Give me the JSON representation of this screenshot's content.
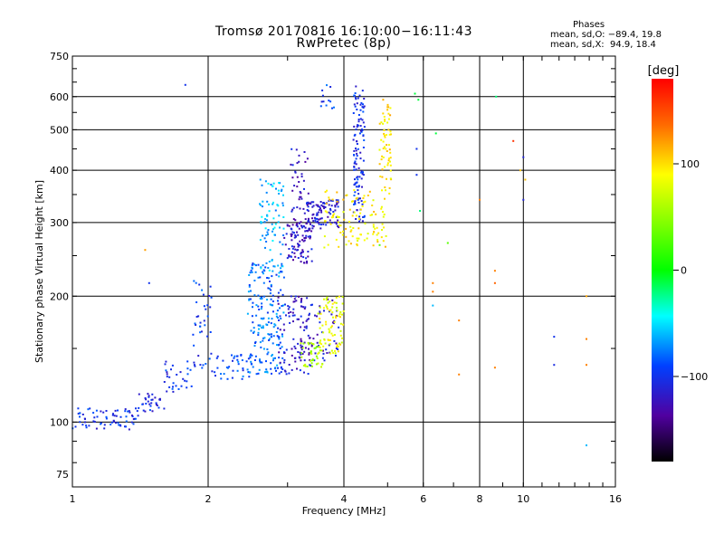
{
  "chart_data": {
    "type": "scatter",
    "title": "Tromsø 20170816 16:10:00−16:11:43",
    "subtitle": "RwPretec (8p)",
    "xlabel": "Frequency [MHz]",
    "ylabel": "Stationary phase Virtual Height [km]",
    "x_scale": "log",
    "y_scale": "log",
    "xlim": [
      1,
      16
    ],
    "ylim": [
      70,
      750
    ],
    "x_ticks": [
      1,
      2,
      4,
      6,
      8,
      10,
      16
    ],
    "y_ticks": [
      75,
      100,
      200,
      300,
      400,
      500,
      600,
      750
    ],
    "grid": true,
    "colorbar": {
      "label": "[deg]",
      "range": [
        -180,
        180
      ],
      "ticks": [
        100,
        0,
        -100
      ]
    },
    "info_box": {
      "heading": "Phases",
      "line_o": "mean, sd,O: −89.4, 19.8",
      "line_x": "mean, sd,X:  94.9, 18.4"
    },
    "clusters": [
      {
        "x": [
          1.0,
          1.4
        ],
        "y": [
          96,
          108
        ],
        "phase": -100,
        "n": 70
      },
      {
        "x": [
          1.4,
          1.6
        ],
        "y": [
          106,
          118
        ],
        "phase": -105,
        "n": 30
      },
      {
        "x": [
          1.6,
          1.85
        ],
        "y": [
          118,
          140
        ],
        "phase": -100,
        "n": 30
      },
      {
        "x": [
          1.85,
          2.05
        ],
        "y": [
          130,
          220
        ],
        "phase": -95,
        "n": 40
      },
      {
        "x": [
          2.05,
          2.5
        ],
        "y": [
          125,
          145
        ],
        "phase": -90,
        "n": 40
      },
      {
        "x": [
          2.45,
          2.95
        ],
        "y": [
          130,
          240
        ],
        "phase": -80,
        "n": 200
      },
      {
        "x": [
          2.6,
          2.95
        ],
        "y": [
          230,
          380
        ],
        "phase": -60,
        "n": 80
      },
      {
        "x": [
          2.85,
          3.4
        ],
        "y": [
          130,
          200
        ],
        "phase": -115,
        "n": 80
      },
      {
        "x": [
          2.95,
          3.4
        ],
        "y": [
          240,
          300
        ],
        "phase": -118,
        "n": 80
      },
      {
        "x": [
          3.05,
          3.35
        ],
        "y": [
          270,
          450
        ],
        "phase": -120,
        "n": 60
      },
      {
        "x": [
          3.3,
          3.9
        ],
        "y": [
          290,
          340
        ],
        "phase": -115,
        "n": 90
      },
      {
        "x": [
          3.2,
          3.9
        ],
        "y": [
          140,
          200
        ],
        "phase": -118,
        "n": 70
      },
      {
        "x": [
          3.2,
          3.6
        ],
        "y": [
          135,
          155
        ],
        "phase": 55,
        "n": 40
      },
      {
        "x": [
          3.5,
          4.0
        ],
        "y": [
          145,
          200
        ],
        "phase": 85,
        "n": 80
      },
      {
        "x": [
          3.55,
          3.9
        ],
        "y": [
          560,
          640
        ],
        "phase": -95,
        "n": 12
      },
      {
        "x": [
          4.2,
          4.45
        ],
        "y": [
          300,
          640
        ],
        "phase": -100,
        "n": 120
      },
      {
        "x": [
          3.6,
          5.0
        ],
        "y": [
          260,
          360
        ],
        "phase": 95,
        "n": 110
      },
      {
        "x": [
          4.8,
          5.1
        ],
        "y": [
          340,
          590
        ],
        "phase": 100,
        "n": 60
      }
    ],
    "extra_points": [
      {
        "x": 1.78,
        "y": 640,
        "phase": -100
      },
      {
        "x": 1.45,
        "y": 258,
        "phase": 120
      },
      {
        "x": 1.48,
        "y": 215,
        "phase": -100
      },
      {
        "x": 5.75,
        "y": 610,
        "phase": -10
      },
      {
        "x": 5.8,
        "y": 450,
        "phase": -100
      },
      {
        "x": 5.8,
        "y": 390,
        "phase": -100
      },
      {
        "x": 5.9,
        "y": 320,
        "phase": -20
      },
      {
        "x": 5.85,
        "y": 590,
        "phase": -10
      },
      {
        "x": 6.3,
        "y": 215,
        "phase": 130
      },
      {
        "x": 6.3,
        "y": 205,
        "phase": 130
      },
      {
        "x": 6.3,
        "y": 190,
        "phase": -60
      },
      {
        "x": 6.4,
        "y": 490,
        "phase": -10
      },
      {
        "x": 7.2,
        "y": 175,
        "phase": 130
      },
      {
        "x": 7.2,
        "y": 130,
        "phase": 130
      },
      {
        "x": 8.0,
        "y": 340,
        "phase": 130
      },
      {
        "x": 8.65,
        "y": 230,
        "phase": 130
      },
      {
        "x": 8.65,
        "y": 215,
        "phase": 140
      },
      {
        "x": 8.65,
        "y": 135,
        "phase": 130
      },
      {
        "x": 8.7,
        "y": 600,
        "phase": -20
      },
      {
        "x": 9.5,
        "y": 470,
        "phase": 160
      },
      {
        "x": 9.85,
        "y": 400,
        "phase": 110
      },
      {
        "x": 10.0,
        "y": 430,
        "phase": -110
      },
      {
        "x": 10.0,
        "y": 340,
        "phase": -110
      },
      {
        "x": 10.1,
        "y": 380,
        "phase": 110
      },
      {
        "x": 11.7,
        "y": 160,
        "phase": -100
      },
      {
        "x": 11.7,
        "y": 137,
        "phase": -105
      },
      {
        "x": 13.8,
        "y": 200,
        "phase": 120
      },
      {
        "x": 13.8,
        "y": 158,
        "phase": 130
      },
      {
        "x": 13.8,
        "y": 137,
        "phase": 130
      },
      {
        "x": 13.8,
        "y": 88,
        "phase": -60
      },
      {
        "x": 6.8,
        "y": 268,
        "phase": 30
      },
      {
        "x": 4.8,
        "y": 265,
        "phase": 30
      }
    ]
  }
}
